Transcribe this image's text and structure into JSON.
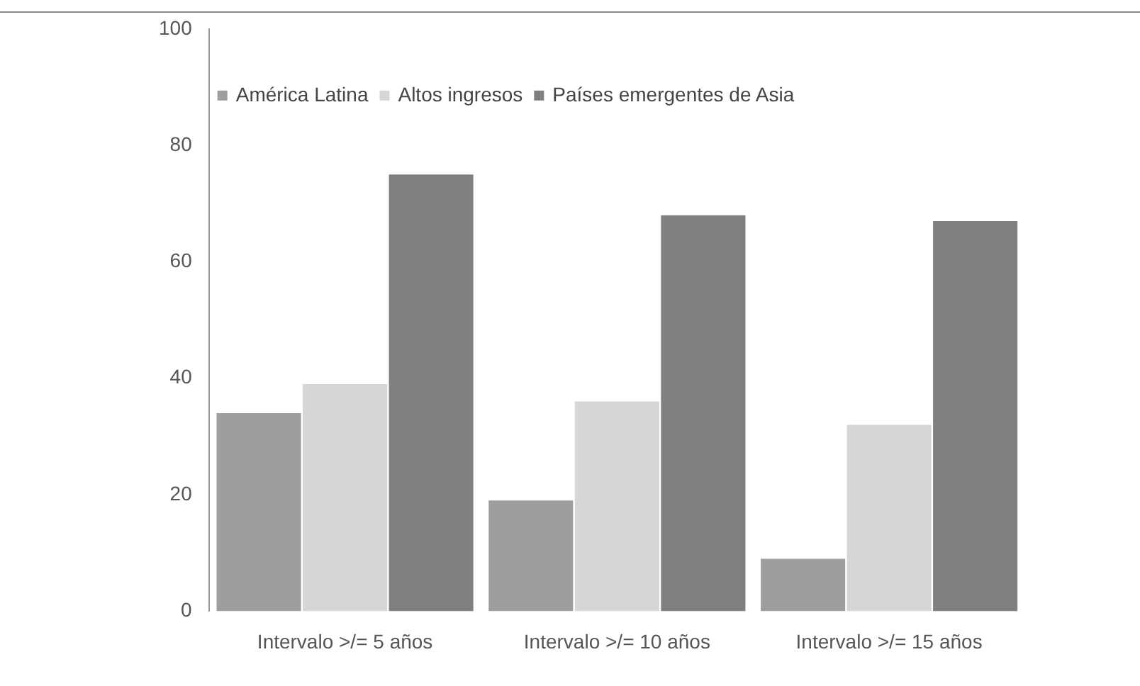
{
  "chart_data": {
    "type": "bar",
    "categories": [
      "Intervalo >/= 5 años",
      "Intervalo >/= 10 años",
      "Intervalo >/= 15 años"
    ],
    "series": [
      {
        "name": "América Latina",
        "color": "#9e9e9e",
        "values": [
          34,
          19,
          9
        ]
      },
      {
        "name": "Altos ingresos",
        "color": "#d6d6d6",
        "values": [
          39,
          36,
          32
        ]
      },
      {
        "name": "Países emergentes de Asia",
        "color": "#808080",
        "values": [
          75,
          68,
          67
        ]
      }
    ],
    "ylim": [
      0,
      100
    ],
    "yticks": [
      0,
      20,
      40,
      60,
      80,
      100
    ],
    "grid": false,
    "legend": "top left"
  }
}
